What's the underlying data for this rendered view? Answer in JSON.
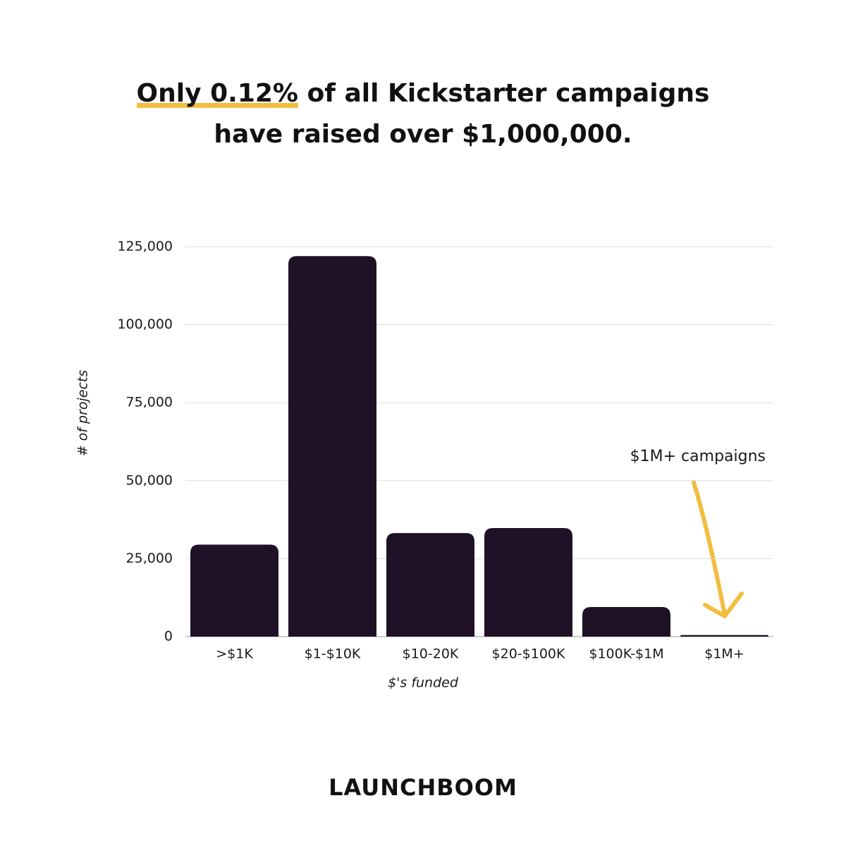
{
  "chart_data": {
    "type": "bar",
    "title_highlight": "Only 0.12%",
    "title_line1_rest": "of all Kickstarter campaigns",
    "title_line2": "have raised over $1,000,000.",
    "x_label": "$'s funded",
    "y_label": "# of projects",
    "categories": [
      ">$1K",
      "$1-$10K",
      "$10-20K",
      "$20-$100K",
      "$100K-$1M",
      "$1M+"
    ],
    "values": [
      29500,
      122000,
      33200,
      34800,
      9500,
      500
    ],
    "color": "#1f1226",
    "ylim": [
      0,
      125000
    ],
    "yticks": [
      0,
      {
        "value": 25000,
        "label": "25,000"
      },
      {
        "value": 50000,
        "label": "50,000"
      },
      {
        "value": 75000,
        "label": "75,000"
      },
      {
        "value": 100000,
        "label": "100,000"
      },
      {
        "value": 125000,
        "label": "125,000"
      }
    ],
    "grid": true,
    "annotation": "$1M+ campaigns",
    "brand": "LAUNCHBOOM"
  }
}
